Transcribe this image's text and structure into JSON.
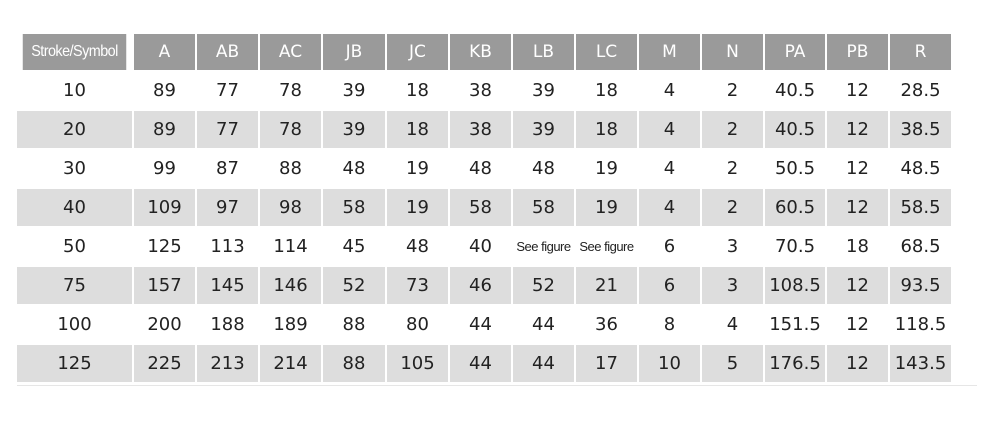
{
  "table": {
    "headers": [
      "Stroke/Symbol",
      "A",
      "AB",
      "AC",
      "JB",
      "JC",
      "KB",
      "LB",
      "LC",
      "M",
      "N",
      "PA",
      "PB",
      "R"
    ],
    "rows": [
      [
        "10",
        "89",
        "77",
        "78",
        "39",
        "18",
        "38",
        "39",
        "18",
        "4",
        "2",
        "40.5",
        "12",
        "28.5"
      ],
      [
        "20",
        "89",
        "77",
        "78",
        "39",
        "18",
        "38",
        "39",
        "18",
        "4",
        "2",
        "40.5",
        "12",
        "38.5"
      ],
      [
        "30",
        "99",
        "87",
        "88",
        "48",
        "19",
        "48",
        "48",
        "19",
        "4",
        "2",
        "50.5",
        "12",
        "48.5"
      ],
      [
        "40",
        "109",
        "97",
        "98",
        "58",
        "19",
        "58",
        "58",
        "19",
        "4",
        "2",
        "60.5",
        "12",
        "58.5"
      ],
      [
        "50",
        "125",
        "113",
        "114",
        "45",
        "48",
        "40",
        "See figure",
        "See figure",
        "6",
        "3",
        "70.5",
        "18",
        "68.5"
      ],
      [
        "75",
        "157",
        "145",
        "146",
        "52",
        "73",
        "46",
        "52",
        "21",
        "6",
        "3",
        "108.5",
        "12",
        "93.5"
      ],
      [
        "100",
        "200",
        "188",
        "189",
        "88",
        "80",
        "44",
        "44",
        "36",
        "8",
        "4",
        "151.5",
        "12",
        "118.5"
      ],
      [
        "125",
        "225",
        "213",
        "214",
        "88",
        "105",
        "44",
        "44",
        "17",
        "10",
        "5",
        "176.5",
        "12",
        "143.5"
      ]
    ]
  },
  "colors": {
    "header_bg": "#9a9a9a",
    "shade_bg": "#dddddd",
    "text": "#222222"
  }
}
